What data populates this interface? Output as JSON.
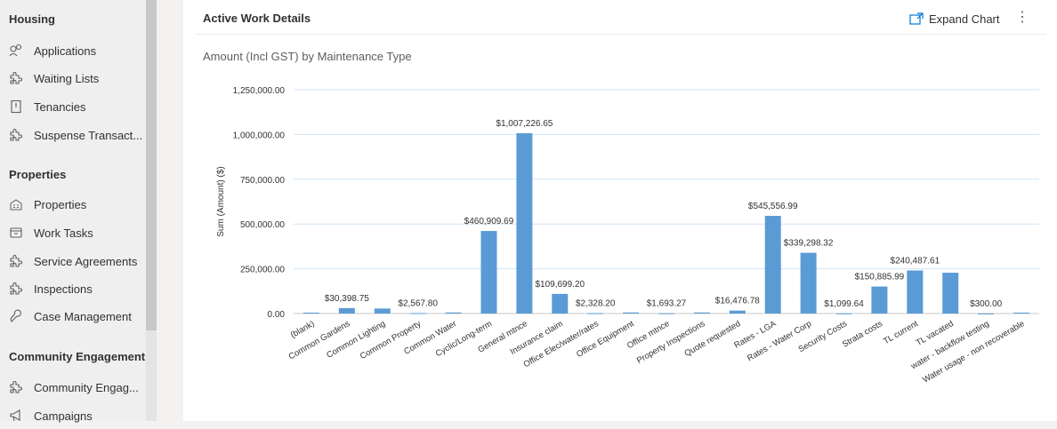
{
  "sidebar": {
    "sections": [
      {
        "label": "Housing",
        "items": [
          {
            "label": "Applications",
            "icon": "applications-icon"
          },
          {
            "label": "Waiting Lists",
            "icon": "puzzle-icon"
          },
          {
            "label": "Tenancies",
            "icon": "document-icon"
          },
          {
            "label": "Suspense Transact...",
            "icon": "puzzle-icon"
          }
        ]
      },
      {
        "label": "Properties",
        "items": [
          {
            "label": "Properties",
            "icon": "building-icon"
          },
          {
            "label": "Work Tasks",
            "icon": "work-tasks-icon"
          },
          {
            "label": "Service Agreements",
            "icon": "puzzle-icon"
          },
          {
            "label": "Inspections",
            "icon": "puzzle-icon"
          },
          {
            "label": "Case Management",
            "icon": "wrench-icon"
          }
        ]
      },
      {
        "label": "Community Engagement",
        "items": [
          {
            "label": "Community Engag...",
            "icon": "puzzle-icon"
          },
          {
            "label": "Campaigns",
            "icon": "megaphone-icon"
          }
        ]
      }
    ]
  },
  "card": {
    "title": "Active Work Details",
    "expand_label": "Expand Chart",
    "more_label": "⋮",
    "chart_title": "Amount (Incl GST) by Maintenance Type"
  },
  "colors": {
    "bar": "#5b9bd5",
    "gridline": "#d0e4f5",
    "accent": "#0078d4"
  },
  "chart_data": {
    "type": "bar",
    "title": "Amount (Incl GST) by Maintenance Type",
    "xlabel": "",
    "ylabel": "Sum (Amount) ($)",
    "ylim": [
      0,
      1250000
    ],
    "yticks": [
      "0.00",
      "250,000.00",
      "500,000.00",
      "750,000.00",
      "1,000,000.00",
      "1,250,000.00"
    ],
    "categories": [
      "(blank)",
      "Common Gardens",
      "Common Lighting",
      "Common Property",
      "Common Water",
      "Cyclic/Long-term",
      "General mtnce",
      "Insurance claim",
      "Office Elec/water/rates",
      "Office Equipment",
      "Office mtnce",
      "Property Inspections",
      "Quote requested",
      "Rates - LGA",
      "Rates - Water Corp",
      "Security Costs",
      "Strata costs",
      "TL current",
      "TL vacated",
      "water - backflow testing",
      "Water usage - non recoverable"
    ],
    "values": [
      5000,
      30398.75,
      28000,
      2567.8,
      6000,
      460909.69,
      1007226.65,
      109699.2,
      2328.2,
      6000,
      1693.27,
      6000,
      16476.78,
      545556.99,
      339298.32,
      1099.64,
      150885.99,
      240487.61,
      228000,
      300.0,
      5000
    ],
    "data_labels": [
      "",
      "$30,398.75",
      "",
      "$2,567.80",
      "",
      "$460,909.69",
      "$1,007,226.65",
      "$109,699.20",
      "$2,328.20",
      "",
      "$1,693.27",
      "",
      "$16,476.78",
      "$545,556.99",
      "$339,298.32",
      "$1,099.64",
      "$150,885.99",
      "$240,487.61",
      "",
      "$300.00",
      ""
    ]
  }
}
